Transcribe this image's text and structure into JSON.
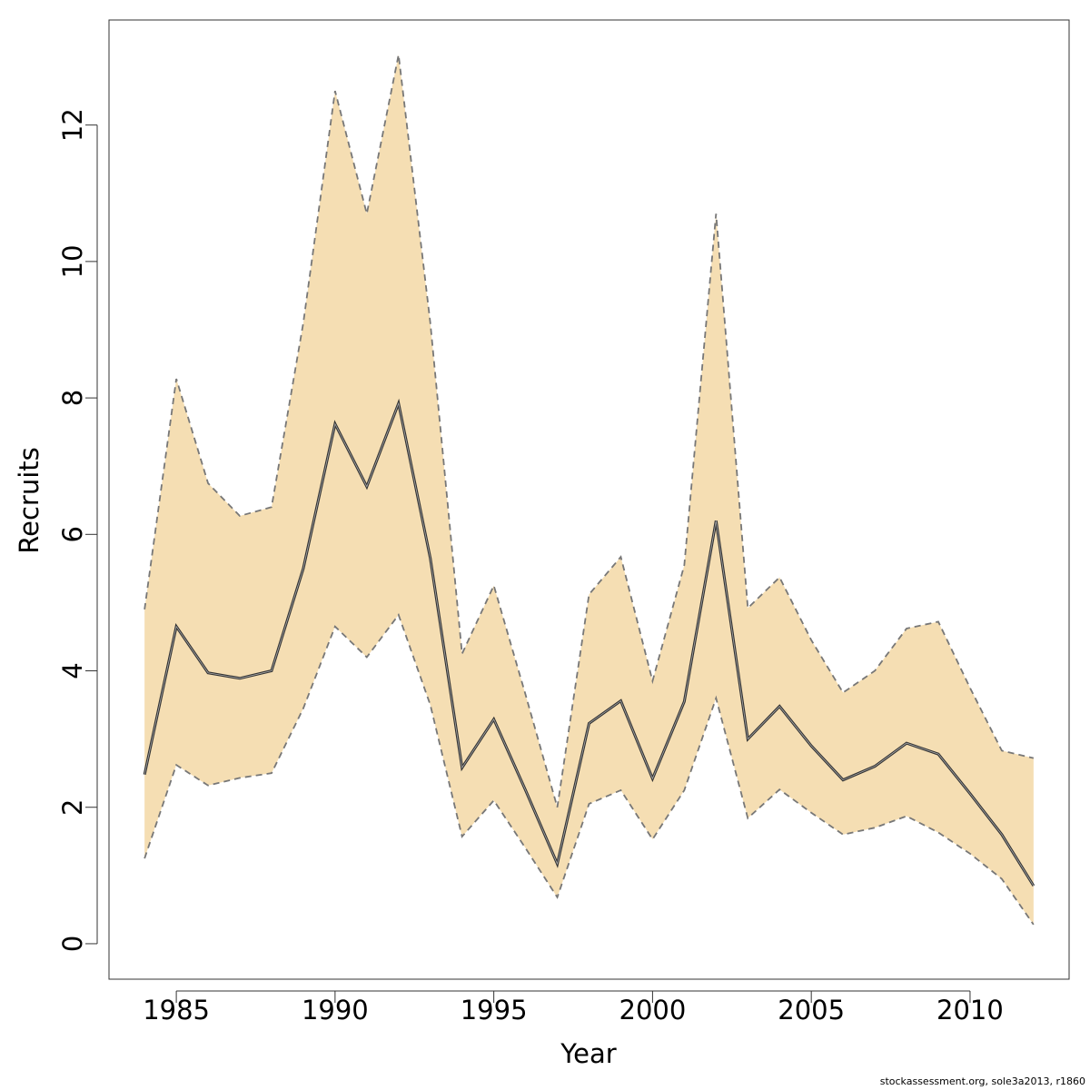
{
  "chart_data": {
    "type": "band-line",
    "xlabel": "Year",
    "ylabel": "Recruits",
    "footnote": "stockassessment.org, sole3a2013, r1860",
    "x": [
      1984,
      1985,
      1986,
      1987,
      1988,
      1989,
      1990,
      1991,
      1992,
      1993,
      1994,
      1995,
      1996,
      1997,
      1998,
      1999,
      2000,
      2001,
      2002,
      2003,
      2004,
      2005,
      2006,
      2007,
      2008,
      2009,
      2010,
      2011,
      2012
    ],
    "values": [
      2.48,
      4.65,
      3.97,
      3.89,
      4.0,
      5.5,
      7.62,
      6.7,
      7.92,
      5.65,
      2.58,
      3.29,
      2.25,
      1.17,
      3.23,
      3.56,
      2.42,
      3.55,
      6.2,
      3.0,
      3.48,
      2.9,
      2.4,
      2.6,
      2.94,
      2.78,
      2.2,
      1.6,
      0.85
    ],
    "lower": [
      1.25,
      2.62,
      2.32,
      2.43,
      2.5,
      3.45,
      4.65,
      4.2,
      4.82,
      3.5,
      1.57,
      2.1,
      1.4,
      0.68,
      2.05,
      2.25,
      1.53,
      2.25,
      3.6,
      1.84,
      2.26,
      1.92,
      1.6,
      1.7,
      1.87,
      1.63,
      1.32,
      0.95,
      0.28
    ],
    "upper": [
      4.9,
      8.28,
      6.75,
      6.27,
      6.4,
      9.1,
      12.5,
      10.7,
      13.03,
      9.1,
      4.25,
      5.25,
      3.65,
      2.0,
      5.12,
      5.67,
      3.85,
      5.55,
      10.7,
      4.92,
      5.37,
      4.45,
      3.68,
      4.0,
      4.62,
      4.72,
      3.75,
      2.83,
      2.72
    ],
    "line_color": "#333333",
    "band_color": "#f5deb3",
    "band_edge_color": "#777777",
    "xlim": [
      1982.88,
      2013.12
    ],
    "xticks": [
      1985,
      1990,
      1995,
      2000,
      2005,
      2010
    ],
    "ylim": [
      -0.52,
      13.54
    ],
    "yticks": [
      0,
      2,
      4,
      6,
      8,
      10,
      12
    ]
  }
}
